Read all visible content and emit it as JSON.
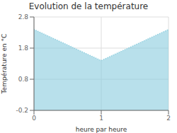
{
  "chart_data": {
    "type": "area",
    "title": "Evolution de la température",
    "xlabel": "heure par heure",
    "ylabel": "Température en °C",
    "x": [
      0,
      1,
      2
    ],
    "values": [
      2.4,
      1.4,
      2.4
    ],
    "xlim": [
      0,
      2
    ],
    "ylim": [
      -0.2,
      2.8
    ],
    "xticks": [
      0,
      1,
      2
    ],
    "yticks": [
      -0.2,
      0.8,
      1.8,
      2.8
    ],
    "color": "#88ccdd",
    "line_style": "dotted",
    "grid": true
  }
}
